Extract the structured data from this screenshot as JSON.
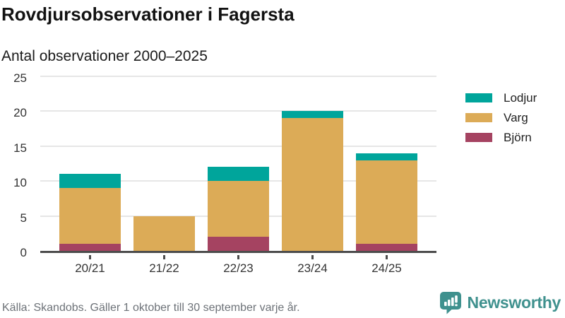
{
  "header": {
    "title": "Rovdjursobservationer i Fagersta",
    "subtitle": "Antal observationer 2000–2025"
  },
  "chart_data": {
    "type": "bar",
    "stacked": true,
    "title": "Rovdjursobservationer i Fagersta",
    "subtitle": "Antal observationer 2000–2025",
    "categories": [
      "20/21",
      "21/22",
      "22/23",
      "23/24",
      "24/25"
    ],
    "series": [
      {
        "name": "Björn",
        "color": "#a54361",
        "values": [
          1,
          0,
          2,
          0,
          1
        ]
      },
      {
        "name": "Varg",
        "color": "#dcab57",
        "values": [
          8,
          5,
          8,
          19,
          12
        ]
      },
      {
        "name": "Lodjur",
        "color": "#00a59b",
        "values": [
          2,
          0,
          2,
          1,
          1
        ]
      }
    ],
    "totals": [
      11,
      5,
      12,
      20,
      14
    ],
    "legend": [
      {
        "label": "Lodjur",
        "color": "#00a59b"
      },
      {
        "label": "Varg",
        "color": "#dcab57"
      },
      {
        "label": "Björn",
        "color": "#a54361"
      }
    ],
    "legend_position": "right",
    "grid": true,
    "yticks": [
      0,
      5,
      10,
      15,
      20,
      25
    ],
    "ylim": [
      0,
      25
    ],
    "xlabel": "",
    "ylabel": ""
  },
  "footer": {
    "source": "Källa: Skandobs. Gäller 1 oktober till 30 september varje år.",
    "brand": "Newsworthy"
  },
  "colors": {
    "lodjur": "#00a59b",
    "varg": "#dcab57",
    "bjorn": "#a54361",
    "brand_teal": "#3f918e",
    "axis_line": "#4c4c4c",
    "gridline": "#e6e6e6"
  }
}
